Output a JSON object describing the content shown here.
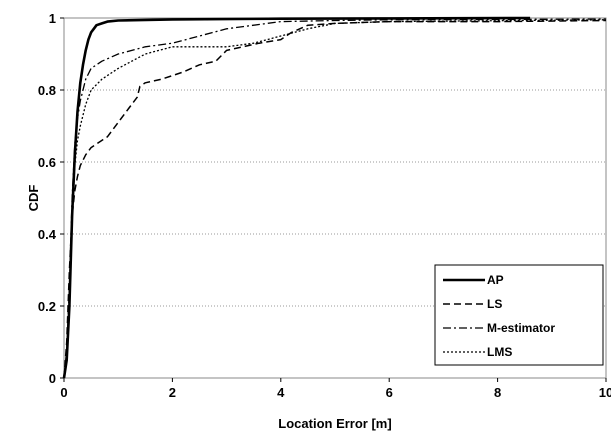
{
  "chart_data": {
    "type": "line",
    "title": "",
    "xlabel": "Location Error [m]",
    "ylabel": "CDF",
    "xlim": [
      0,
      10
    ],
    "ylim": [
      0,
      1
    ],
    "xticks": [
      0,
      2,
      4,
      6,
      8,
      10
    ],
    "yticks": [
      0,
      0.2,
      0.4,
      0.6,
      0.8,
      1
    ],
    "xtick_labels": [
      "0",
      "2",
      "4",
      "6",
      "8",
      "10"
    ],
    "ytick_labels": [
      "0",
      "0.2",
      "0.4",
      "0.6",
      "0.8",
      "1"
    ],
    "grid": "horizontal dotted",
    "legend_position": "bottom-right",
    "series": [
      {
        "name": "AP",
        "style": "solid-thick",
        "x": [
          0,
          0.05,
          0.1,
          0.15,
          0.2,
          0.25,
          0.3,
          0.35,
          0.4,
          0.45,
          0.5,
          0.55,
          0.6,
          0.7,
          0.8,
          1.0,
          2.0,
          4.0,
          6.0,
          8.6
        ],
        "y": [
          0,
          0.05,
          0.2,
          0.45,
          0.62,
          0.74,
          0.82,
          0.87,
          0.91,
          0.94,
          0.96,
          0.97,
          0.98,
          0.985,
          0.99,
          0.993,
          0.996,
          0.998,
          0.999,
          1.0
        ]
      },
      {
        "name": "LS",
        "style": "dashed",
        "x": [
          0,
          0.05,
          0.1,
          0.15,
          0.2,
          0.25,
          0.3,
          0.4,
          0.5,
          0.6,
          0.8,
          1.0,
          1.2,
          1.35,
          1.4,
          1.5,
          1.8,
          2.2,
          2.5,
          2.8,
          3.0,
          3.3,
          3.6,
          4.0,
          4.2,
          4.5,
          5.0,
          6.0,
          8.0,
          10.0
        ],
        "y": [
          0,
          0.1,
          0.3,
          0.45,
          0.52,
          0.56,
          0.59,
          0.62,
          0.64,
          0.65,
          0.67,
          0.71,
          0.75,
          0.78,
          0.81,
          0.82,
          0.83,
          0.85,
          0.87,
          0.88,
          0.91,
          0.92,
          0.93,
          0.94,
          0.96,
          0.98,
          0.985,
          0.99,
          0.99,
          0.993
        ]
      },
      {
        "name": "M-estimator",
        "style": "dash-dot",
        "x": [
          0,
          0.05,
          0.1,
          0.15,
          0.2,
          0.25,
          0.3,
          0.4,
          0.5,
          0.7,
          1.0,
          1.5,
          2.0,
          2.5,
          3.0,
          3.5,
          4.0,
          5.0,
          6.0,
          10.0
        ],
        "y": [
          0,
          0.08,
          0.25,
          0.5,
          0.65,
          0.72,
          0.77,
          0.83,
          0.86,
          0.88,
          0.9,
          0.92,
          0.93,
          0.95,
          0.97,
          0.98,
          0.99,
          0.993,
          0.995,
          0.997
        ]
      },
      {
        "name": "LMS",
        "style": "dotted",
        "x": [
          0,
          0.05,
          0.1,
          0.15,
          0.2,
          0.25,
          0.3,
          0.4,
          0.5,
          0.7,
          1.0,
          1.5,
          2.0,
          2.5,
          3.0,
          3.5,
          4.0,
          4.5,
          5.0,
          6.0,
          10.0
        ],
        "y": [
          0,
          0.07,
          0.22,
          0.44,
          0.59,
          0.66,
          0.7,
          0.76,
          0.8,
          0.83,
          0.86,
          0.9,
          0.92,
          0.92,
          0.92,
          0.93,
          0.95,
          0.97,
          0.985,
          0.99,
          0.995
        ]
      }
    ]
  }
}
